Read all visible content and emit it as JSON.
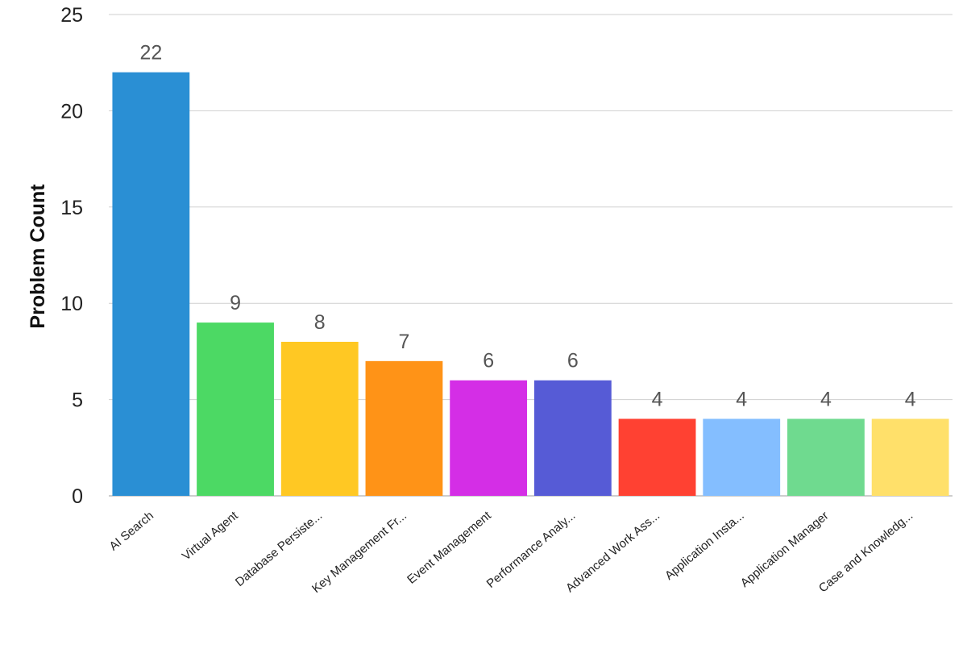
{
  "chart_data": {
    "type": "bar",
    "categories": [
      "AI Search",
      "Virtual Agent",
      "Database Persiste...",
      "Key Management Fr...",
      "Event Management",
      "Performance Analy...",
      "Advanced Work Ass...",
      "Application Insta...",
      "Application Manager",
      "Case and Knowledg..."
    ],
    "values": [
      22,
      9,
      8,
      7,
      6,
      6,
      4,
      4,
      4,
      4
    ],
    "colors": [
      "#2A8FD4",
      "#4CD964",
      "#FFC823",
      "#FF9317",
      "#D42EE6",
      "#565BD6",
      "#FF4132",
      "#84BEFF",
      "#6FDA8F",
      "#FFE06A"
    ],
    "title": "",
    "xlabel": "",
    "ylabel": "Problem Count",
    "ylim": [
      0,
      25
    ],
    "yticks": [
      0,
      5,
      10,
      15,
      20,
      25
    ],
    "grid": true,
    "data_labels": true
  }
}
